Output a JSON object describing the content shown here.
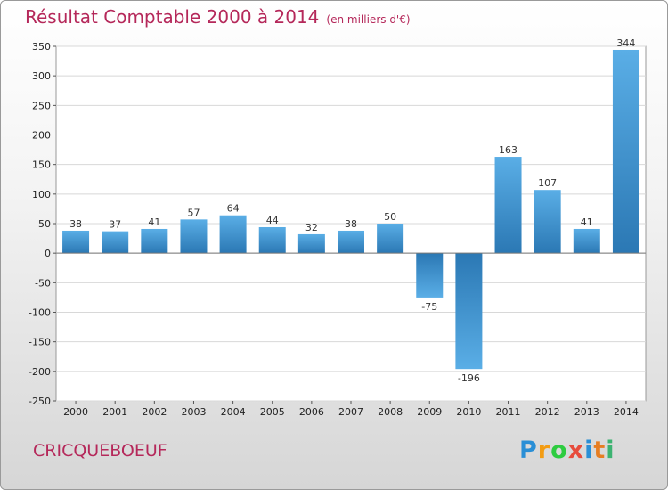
{
  "chart_data": {
    "type": "bar",
    "title": "Résultat Comptable 2000 à 2014",
    "subtitle": "(en milliers d'€)",
    "categories": [
      "2000",
      "2001",
      "2002",
      "2003",
      "2004",
      "2005",
      "2006",
      "2007",
      "2008",
      "2009",
      "2010",
      "2011",
      "2012",
      "2013",
      "2014"
    ],
    "values": [
      38,
      37,
      41,
      57,
      64,
      44,
      32,
      38,
      50,
      -75,
      -196,
      163,
      107,
      41,
      344
    ],
    "value_labels": [
      "38",
      "37",
      "41",
      "57",
      "64",
      "44",
      "32",
      "38",
      "50",
      "-75",
      "-196",
      "163",
      "107",
      "41",
      "344"
    ],
    "ylim": [
      -250,
      350
    ],
    "yticks": [
      350,
      300,
      250,
      200,
      150,
      100,
      50,
      0,
      -50,
      -100,
      -150,
      -200,
      -250
    ],
    "ytick_labels": [
      "350",
      "300",
      "250",
      "200",
      "150",
      "100",
      "50",
      "0",
      "-50",
      "-100",
      "-150",
      "-200",
      "-250"
    ],
    "grid": true,
    "xlabel": "",
    "ylabel": ""
  },
  "commune": "CRICQUEBOEUF",
  "logo": {
    "letters": [
      "P",
      "r",
      "o",
      "x",
      "i",
      "t",
      "i"
    ],
    "colors": [
      "#2a8fd6",
      "#f39c12",
      "#2ecc40",
      "#e74c3c",
      "#2a8fd6",
      "#e67e22",
      "#3cb371"
    ]
  },
  "colors": {
    "bar_light": "#5aaee6",
    "bar_dark": "#2b78b4",
    "title": "#b5285a"
  }
}
